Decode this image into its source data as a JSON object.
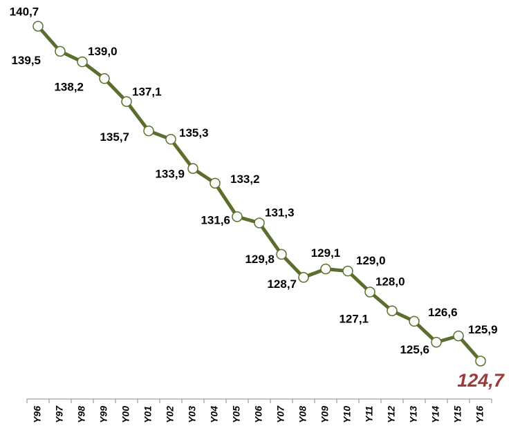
{
  "chart_data": {
    "type": "line",
    "categories": [
      "Y96",
      "Y97",
      "Y98",
      "Y99",
      "Y00",
      "Y01",
      "Y02",
      "Y03",
      "Y04",
      "Y05",
      "Y06",
      "Y07",
      "Y08",
      "Y09",
      "Y10",
      "Y11",
      "Y12",
      "Y13",
      "Y14",
      "Y15",
      "Y16"
    ],
    "series": [
      {
        "color": "#5b6e2d",
        "values": [
          140.7,
          139.5,
          139.0,
          138.2,
          137.1,
          135.7,
          135.3,
          133.9,
          133.2,
          131.6,
          131.3,
          129.8,
          128.7,
          129.1,
          129.0,
          128.0,
          127.1,
          126.6,
          125.6,
          125.9,
          124.7
        ],
        "value_labels": [
          "140,7",
          "139,5",
          "139,0",
          "138,2",
          "137,1",
          "135,7",
          "135,3",
          "133,9",
          "133,2",
          "131,6",
          "131,3",
          "129,8",
          "128,7",
          "129,1",
          "129,0",
          "128,0",
          "127,1",
          "126,6",
          "125,6",
          "125,9",
          "124,7"
        ]
      }
    ],
    "highlight_color": "#9b3b3b"
  }
}
